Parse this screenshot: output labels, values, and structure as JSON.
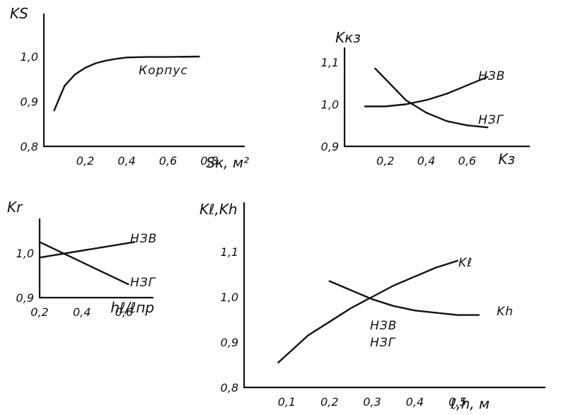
{
  "chart_data": [
    {
      "type": "line",
      "ylabel": "KS",
      "xlabel": "Sк, м²",
      "xlim": [
        0,
        0.8
      ],
      "ylim": [
        0.8,
        1.0
      ],
      "x_ticks": [
        0.2,
        0.4,
        0.6,
        0.8
      ],
      "y_ticks": [
        0.8,
        0.9,
        1.0
      ],
      "series": [
        {
          "name": "Корпус",
          "x": [
            0.05,
            0.1,
            0.15,
            0.2,
            0.25,
            0.3,
            0.35,
            0.4,
            0.5,
            0.6,
            0.75
          ],
          "y": [
            0.88,
            0.935,
            0.96,
            0.975,
            0.985,
            0.991,
            0.995,
            0.998,
            0.999,
            0.999,
            1.0
          ]
        }
      ]
    },
    {
      "type": "line",
      "ylabel": "Kкз",
      "xlabel": "Kз",
      "xlim": [
        0,
        0.8
      ],
      "ylim": [
        0.9,
        1.1
      ],
      "x_ticks": [
        0.2,
        0.4,
        0.6
      ],
      "y_ticks": [
        0.9,
        1.0,
        1.1
      ],
      "series": [
        {
          "name": "НЗВ",
          "x": [
            0.1,
            0.2,
            0.3,
            0.4,
            0.5,
            0.6,
            0.7
          ],
          "y": [
            0.995,
            0.995,
            1.0,
            1.01,
            1.025,
            1.045,
            1.065
          ]
        },
        {
          "name": "НЗГ",
          "x": [
            0.15,
            0.2,
            0.3,
            0.4,
            0.5,
            0.6,
            0.7
          ],
          "y": [
            1.085,
            1.06,
            1.01,
            0.98,
            0.96,
            0.95,
            0.945
          ]
        }
      ]
    },
    {
      "type": "line",
      "ylabel": "Kr",
      "xlabel": "hℓ/ℓпр",
      "xlim": [
        0.2,
        0.8
      ],
      "ylim": [
        0.9,
        1.1
      ],
      "x_ticks": [
        0.2,
        0.4,
        0.6
      ],
      "y_ticks": [
        0.9,
        1.0
      ],
      "series": [
        {
          "name": "НЗВ",
          "x": [
            0.2,
            0.65
          ],
          "y": [
            0.99,
            1.025
          ]
        },
        {
          "name": "НЗГ",
          "x": [
            0.2,
            0.62
          ],
          "y": [
            1.025,
            0.93
          ]
        }
      ]
    },
    {
      "type": "line",
      "ylabel": "Kℓ,Kh",
      "xlabel": "ℓ,h, м",
      "xlim": [
        0,
        0.6
      ],
      "ylim": [
        0.8,
        1.12
      ],
      "x_ticks": [
        0.1,
        0.2,
        0.3,
        0.4,
        0.5
      ],
      "y_ticks": [
        0.8,
        0.9,
        1.0,
        1.1
      ],
      "annotation": [
        "НЗВ",
        "НЗГ"
      ],
      "series": [
        {
          "name": "Kℓ",
          "x": [
            0.08,
            0.15,
            0.2,
            0.25,
            0.3,
            0.35,
            0.4,
            0.45,
            0.5
          ],
          "y": [
            0.855,
            0.915,
            0.945,
            0.975,
            1.0,
            1.025,
            1.045,
            1.065,
            1.08
          ]
        },
        {
          "name": "Kh",
          "x": [
            0.2,
            0.25,
            0.3,
            0.35,
            0.4,
            0.45,
            0.5,
            0.55
          ],
          "y": [
            1.035,
            1.015,
            0.995,
            0.98,
            0.97,
            0.965,
            0.96,
            0.96
          ]
        }
      ]
    }
  ]
}
